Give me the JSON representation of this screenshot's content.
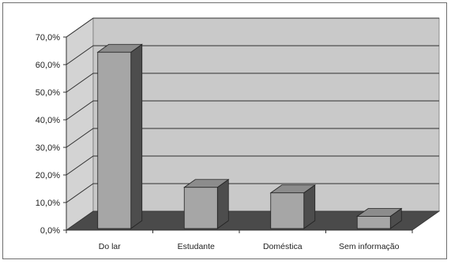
{
  "chart_data": {
    "type": "bar",
    "categories": [
      "Do lar",
      "Estudante",
      "Doméstica",
      "Sem informação"
    ],
    "values": [
      64.5,
      15.5,
      13.5,
      5.0
    ],
    "ylim": [
      0,
      70
    ],
    "yticks": [
      "0,0%",
      "10,0%",
      "20,0%",
      "30,0%",
      "40,0%",
      "50,0%",
      "60,0%",
      "70,0%"
    ],
    "grid": true,
    "three_d": true,
    "colors": {
      "bar_front": "#a6a6a6",
      "bar_side": "#4d4d4d",
      "bar_top": "#8c8c8c",
      "back_wall": "#c9c9c9",
      "side_wall": "#d3d3d3",
      "floor": "#4a4a4a"
    }
  }
}
